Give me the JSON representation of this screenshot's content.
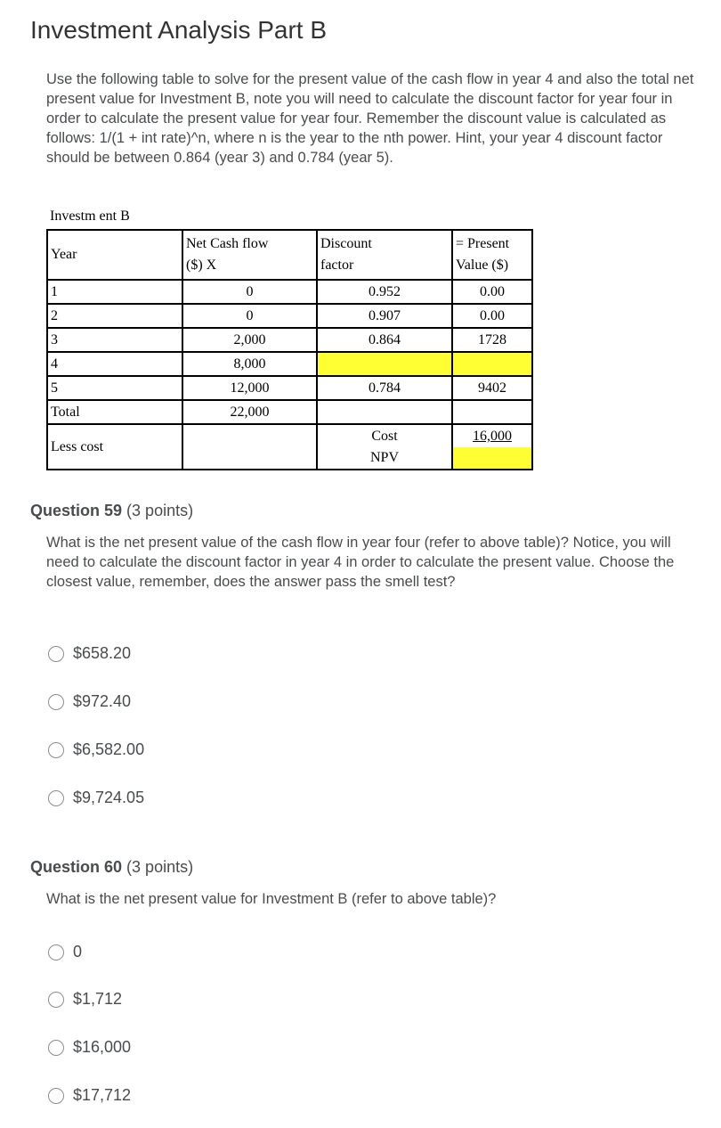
{
  "title": "Investment Analysis Part B",
  "intro": "Use the following table to solve for the present value of the cash flow in year 4 and also the total net present value for Investment B, note you will need to calculate the discount factor for year four in order to calculate the present value for year four. Remember the discount value is calculated as follows: 1/(1 + int rate)^n, where n is the year to the nth power. Hint, your year 4 discount factor should be between 0.864 (year 3) and 0.784 (year 5).",
  "table": {
    "caption": "Investm ent B",
    "headers": {
      "year": "Year",
      "cash1": "Net Cash flow",
      "cash2": "($)  X",
      "disc1": "Discount",
      "disc2": "factor",
      "pv1": "= Present",
      "pv2": "Value ($)"
    },
    "rows": [
      {
        "year": "1",
        "cash": "0",
        "factor": "0.952",
        "pv": "0.00"
      },
      {
        "year": "2",
        "cash": "0",
        "factor": "0.907",
        "pv": "0.00"
      },
      {
        "year": "3",
        "cash": "2,000",
        "factor": "0.864",
        "pv": "1728"
      },
      {
        "year": "4",
        "cash": "8,000",
        "factor": "",
        "pv": ""
      },
      {
        "year": "5",
        "cash": "12,000",
        "factor": "0.784",
        "pv": "9402"
      }
    ],
    "total_label": "Total",
    "total_cash": "22,000",
    "less_cost_label": "Less cost",
    "cost_label": "Cost",
    "npv_label": "NPV",
    "cost_value": "16,000",
    "highlight_color": "#ffff33"
  },
  "q59": {
    "title": "Question 59",
    "points": "(3 points)",
    "text": "What is the net present value of the cash flow in year four (refer to above table)? Notice, you will need to calculate the discount factor in year 4 in order to calculate the present value. Choose the closest value, remember, does the answer pass the smell test?",
    "options": [
      "$658.20",
      "$972.40",
      "$6,582.00",
      "$9,724.05"
    ]
  },
  "q60": {
    "title": "Question 60",
    "points": "(3 points)",
    "text": "What is the net present value for Investment B (refer to above table)?",
    "options": [
      "0",
      "$1,712",
      "$16,000",
      "$17,712"
    ]
  }
}
